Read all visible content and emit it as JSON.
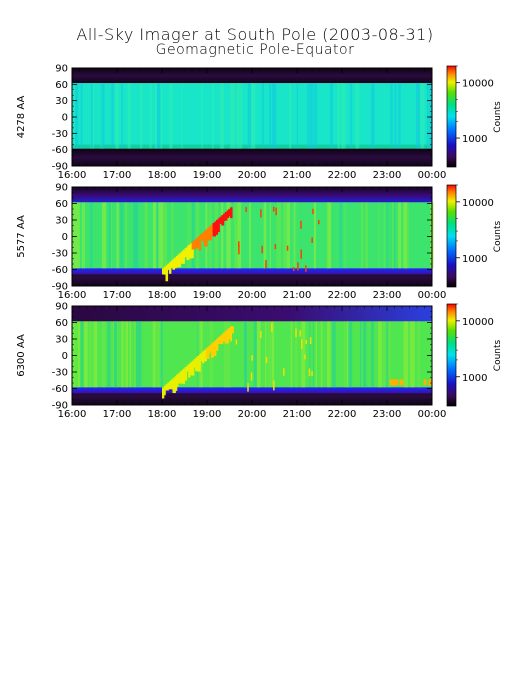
{
  "title": "All-Sky Imager at South Pole (2003-08-31)",
  "subtitle": "Geomagnetic Pole-Equator",
  "chart_data": [
    {
      "type": "heatmap",
      "ylabel": "4278 AA",
      "x_ticks": [
        "16:00",
        "17:00",
        "18:00",
        "19:00",
        "20:00",
        "21:00",
        "22:00",
        "23:00",
        "00:00"
      ],
      "y_ticks": [
        90,
        60,
        30,
        0,
        -30,
        -60,
        -90
      ],
      "ylim": [
        -90,
        90
      ],
      "colorbar_label": "Counts",
      "colorbar_ticks": [
        10000,
        1000
      ],
      "colorbar_scale": "log"
    },
    {
      "type": "heatmap",
      "ylabel": "5577 AA",
      "x_ticks": [
        "16:00",
        "17:00",
        "18:00",
        "19:00",
        "20:00",
        "21:00",
        "22:00",
        "23:00",
        "00:00"
      ],
      "y_ticks": [
        90,
        60,
        30,
        0,
        -30,
        -60,
        -90
      ],
      "ylim": [
        -90,
        90
      ],
      "colorbar_label": "Counts",
      "colorbar_ticks": [
        10000,
        1000
      ],
      "colorbar_scale": "log"
    },
    {
      "type": "heatmap",
      "ylabel": "6300 AA",
      "x_ticks": [
        "16:00",
        "17:00",
        "18:00",
        "19:00",
        "20:00",
        "21:00",
        "22:00",
        "23:00",
        "00:00"
      ],
      "y_ticks": [
        90,
        60,
        30,
        0,
        -30,
        -60,
        -90
      ],
      "ylim": [
        -90,
        90
      ],
      "colorbar_label": "Counts",
      "colorbar_ticks": [
        10000,
        1000
      ],
      "colorbar_scale": "log"
    }
  ]
}
